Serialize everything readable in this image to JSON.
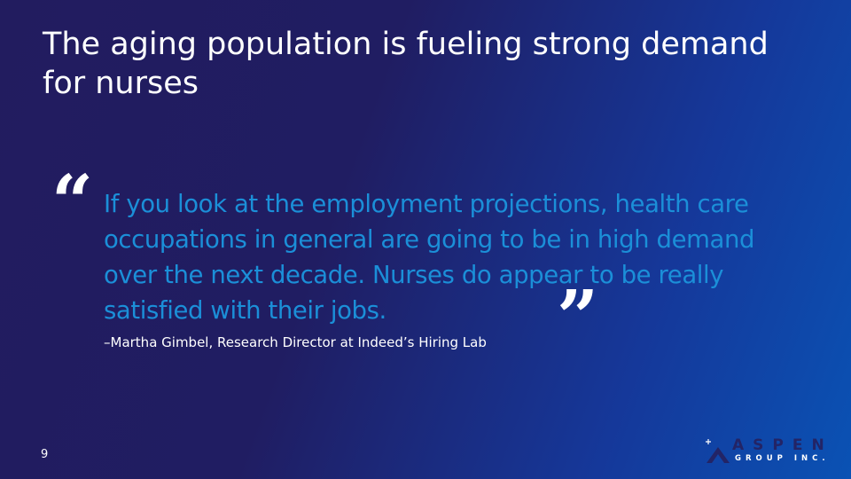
{
  "slide": {
    "title": "The aging population is fueling strong demand for nurses",
    "open_quote": "“",
    "quote": "If you look at the employment projections, health care occupations in general are going to be in high demand over the next decade. Nurses do appear to be really satisfied with their jobs.",
    "close_quote": "”",
    "attribution": "–Martha Gimbel, Research Director at Indeed’s Hiring Lab",
    "page_number": "9"
  },
  "logo": {
    "line1": "ASPEN",
    "line2": "GROUP INC."
  },
  "colors": {
    "quote_text": "#1b8fd8",
    "background_start": "#221c5f",
    "background_end": "#0a52b4"
  }
}
